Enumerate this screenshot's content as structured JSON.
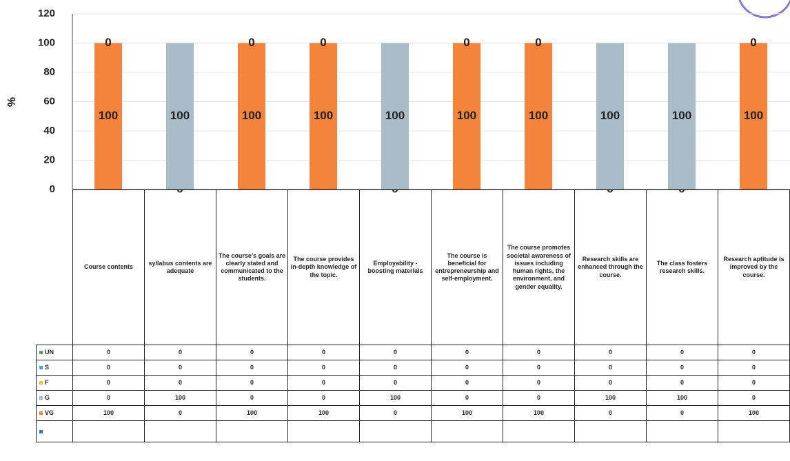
{
  "chart_data": {
    "type": "stacked_bar",
    "y_label": "%",
    "categories": [
      "Course contents",
      "syllabus contents are adequate",
      "The course's goals are clearly stated and communicated to the students.",
      "The course provides in-depth knowledge of the topic.",
      "Employability -boosting materials",
      "The course is beneficial for entrepreneurship and self-employment.",
      "The course promotes societal awareness of issues including human rights, the environment, and gender equality.",
      "Research skills are enhanced through the course.",
      "The class fosters research skills.",
      "Research aptitude is improved by the course."
    ],
    "series": [
      {
        "name": "UN",
        "color": "#5aa454",
        "values": [
          0,
          0,
          0,
          0,
          0,
          0,
          0,
          0,
          0,
          0
        ]
      },
      {
        "name": "S",
        "color": "#4aa3d8",
        "values": [
          0,
          0,
          0,
          0,
          0,
          0,
          0,
          0,
          0,
          0
        ]
      },
      {
        "name": "F",
        "color": "#f2c230",
        "values": [
          0,
          0,
          0,
          0,
          0,
          0,
          0,
          0,
          0,
          0
        ]
      },
      {
        "name": "G",
        "color": "#a9bcc8",
        "values": [
          0,
          100,
          0,
          0,
          100,
          0,
          0,
          100,
          100,
          0
        ]
      },
      {
        "name": "VG",
        "color": "#f4843c",
        "values": [
          100,
          0,
          100,
          100,
          0,
          100,
          100,
          0,
          0,
          100
        ]
      }
    ],
    "ylim": [
      0,
      120
    ],
    "yticks": [
      0,
      20,
      40,
      60,
      80,
      100,
      120
    ],
    "grid": true
  }
}
